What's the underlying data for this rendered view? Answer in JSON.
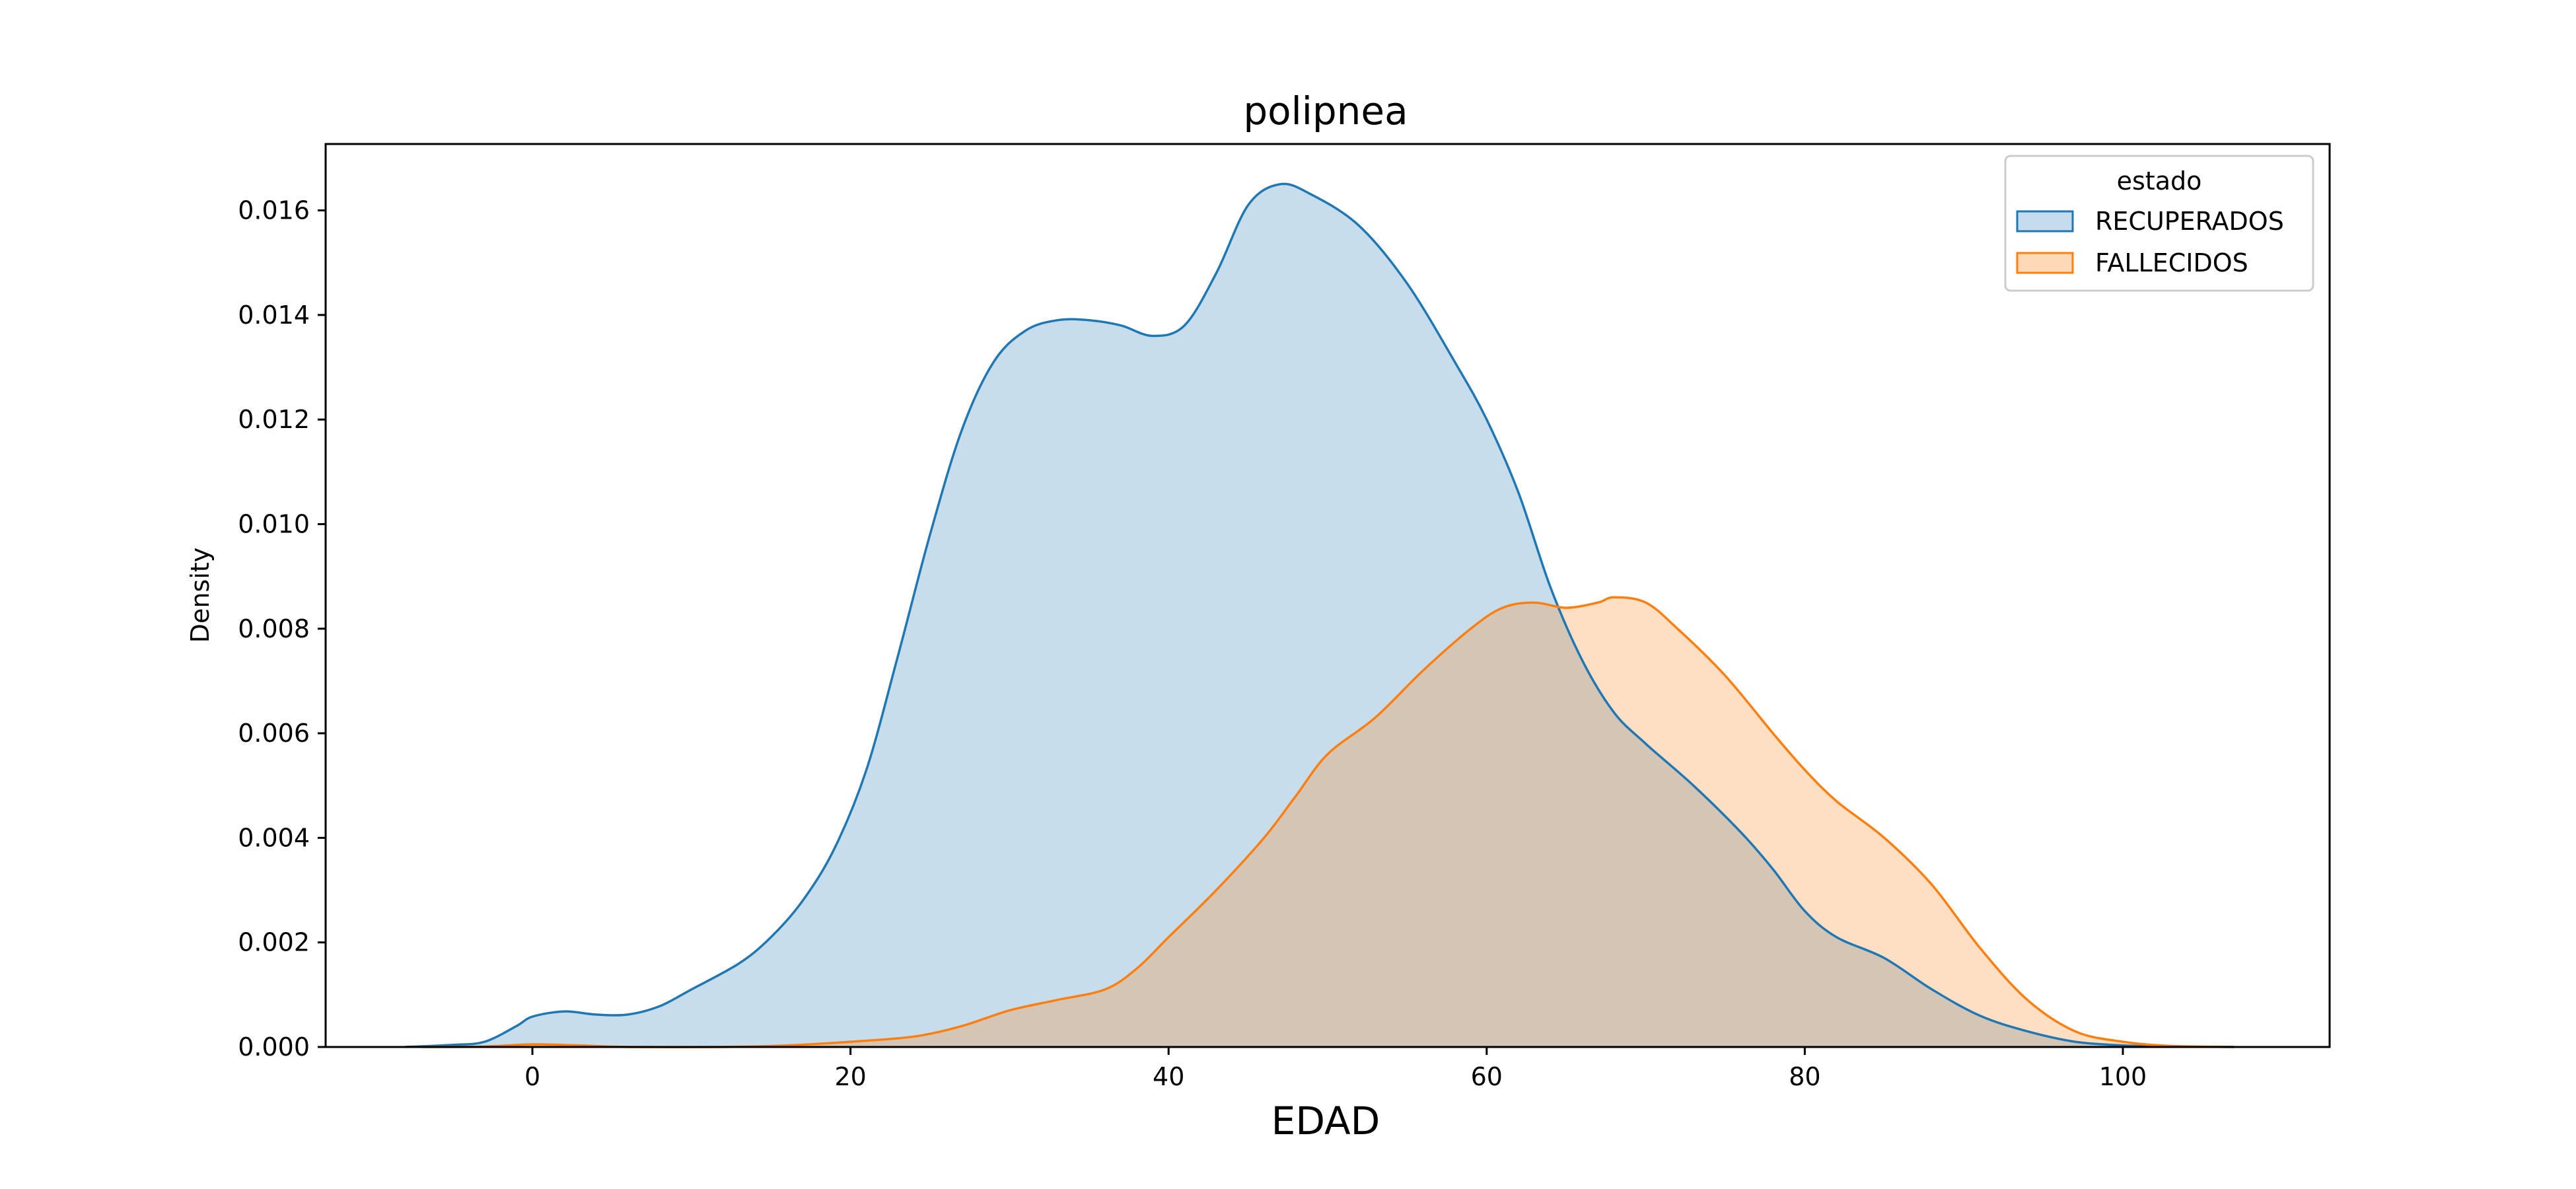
{
  "chart_data": {
    "type": "area",
    "title": "polipnea",
    "xlabel": "EDAD",
    "ylabel": "Density",
    "xlim": [
      -13,
      113
    ],
    "ylim": [
      0,
      0.01727
    ],
    "xticks": [
      0,
      20,
      40,
      60,
      80,
      100
    ],
    "xtick_labels": [
      "0",
      "20",
      "40",
      "60",
      "80",
      "100"
    ],
    "yticks": [
      0,
      0.002,
      0.004,
      0.006,
      0.008,
      0.01,
      0.012,
      0.014,
      0.016
    ],
    "ytick_labels": [
      "0.000",
      "0.002",
      "0.004",
      "0.006",
      "0.008",
      "0.010",
      "0.012",
      "0.014",
      "0.016"
    ],
    "grid": false,
    "legend": {
      "title": "estado",
      "position": "top-right"
    },
    "series": [
      {
        "name": "RECUPERADOS",
        "color": "#1f77b4",
        "fill": "#c6dbed",
        "points": [
          [
            -8,
            0.0
          ],
          [
            -5,
            4e-05
          ],
          [
            -3,
            0.0001
          ],
          [
            -1,
            0.0004
          ],
          [
            0,
            0.00058
          ],
          [
            2,
            0.00068
          ],
          [
            4,
            0.00062
          ],
          [
            6,
            0.00062
          ],
          [
            8,
            0.00078
          ],
          [
            10,
            0.0011
          ],
          [
            13,
            0.0016
          ],
          [
            15,
            0.0021
          ],
          [
            17,
            0.0028
          ],
          [
            19,
            0.0038
          ],
          [
            21,
            0.0053
          ],
          [
            23,
            0.0075
          ],
          [
            25,
            0.0098
          ],
          [
            27,
            0.0118
          ],
          [
            29,
            0.0131
          ],
          [
            31,
            0.0137
          ],
          [
            33,
            0.0139
          ],
          [
            35,
            0.0139
          ],
          [
            37,
            0.0138
          ],
          [
            39,
            0.0136
          ],
          [
            41,
            0.0138
          ],
          [
            43,
            0.0148
          ],
          [
            45,
            0.0161
          ],
          [
            47,
            0.0165
          ],
          [
            49,
            0.0163
          ],
          [
            52,
            0.0157
          ],
          [
            55,
            0.0146
          ],
          [
            58,
            0.0131
          ],
          [
            60,
            0.012
          ],
          [
            62,
            0.0106
          ],
          [
            64,
            0.0088
          ],
          [
            66,
            0.0074
          ],
          [
            68,
            0.0064
          ],
          [
            70,
            0.0058
          ],
          [
            73,
            0.005
          ],
          [
            76,
            0.0041
          ],
          [
            78,
            0.0034
          ],
          [
            80,
            0.0026
          ],
          [
            82,
            0.0021
          ],
          [
            85,
            0.0017
          ],
          [
            88,
            0.0011
          ],
          [
            91,
            0.0006
          ],
          [
            94,
            0.0003
          ],
          [
            97,
            0.0001
          ],
          [
            100,
            3e-05
          ],
          [
            103,
            1e-05
          ],
          [
            107,
            0.0
          ]
        ]
      },
      {
        "name": "FALLECIDOS",
        "color": "#ff7f0e",
        "fill": "#fdd9b7",
        "points": [
          [
            -7,
            0.0
          ],
          [
            -3,
            1e-05
          ],
          [
            0,
            5e-05
          ],
          [
            3,
            3e-05
          ],
          [
            6,
            0.0
          ],
          [
            12,
            0.0
          ],
          [
            16,
            3e-05
          ],
          [
            20,
            0.0001
          ],
          [
            24,
            0.0002
          ],
          [
            27,
            0.0004
          ],
          [
            30,
            0.0007
          ],
          [
            33,
            0.0009
          ],
          [
            36,
            0.0011
          ],
          [
            38,
            0.0015
          ],
          [
            40,
            0.0021
          ],
          [
            43,
            0.003
          ],
          [
            46,
            0.004
          ],
          [
            48,
            0.0048
          ],
          [
            50,
            0.0056
          ],
          [
            53,
            0.0063
          ],
          [
            56,
            0.0072
          ],
          [
            59,
            0.008
          ],
          [
            61,
            0.0084
          ],
          [
            63,
            0.0085
          ],
          [
            65,
            0.0084
          ],
          [
            67,
            0.0085
          ],
          [
            68,
            0.0086
          ],
          [
            70,
            0.0085
          ],
          [
            72,
            0.008
          ],
          [
            75,
            0.0071
          ],
          [
            78,
            0.006
          ],
          [
            80,
            0.0053
          ],
          [
            82,
            0.0047
          ],
          [
            85,
            0.004
          ],
          [
            88,
            0.0031
          ],
          [
            91,
            0.0019
          ],
          [
            94,
            0.0009
          ],
          [
            97,
            0.0003
          ],
          [
            100,
            0.0001
          ],
          [
            103,
            2e-05
          ],
          [
            107,
            0.0
          ]
        ]
      }
    ]
  }
}
